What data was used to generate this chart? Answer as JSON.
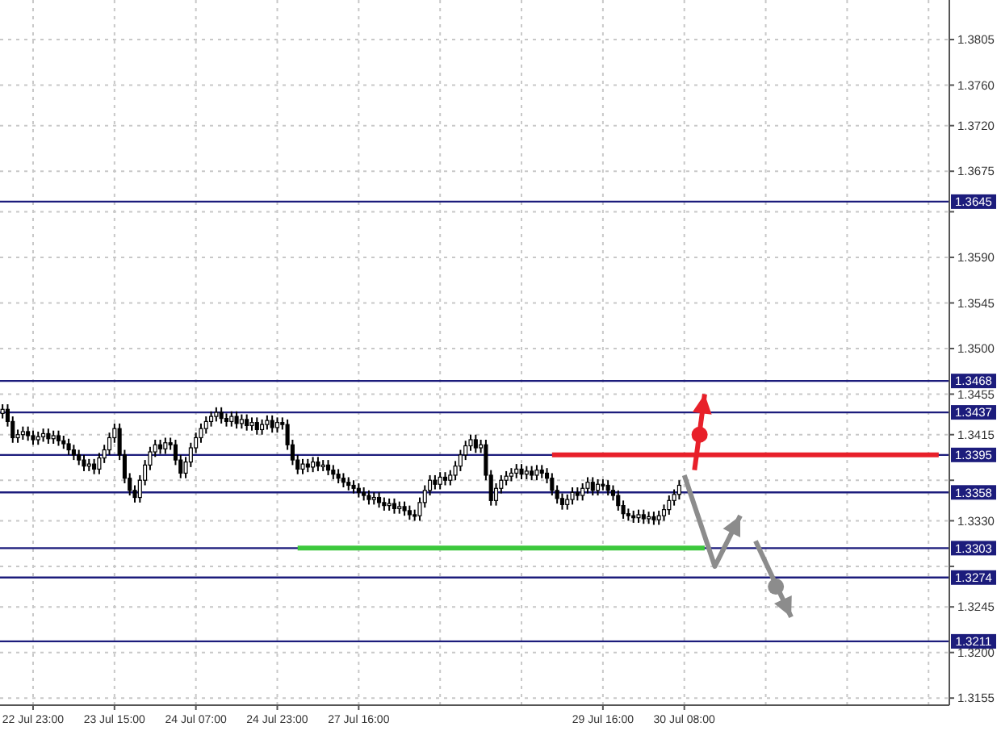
{
  "chart_data": {
    "type": "candlestick",
    "categories": [
      null,
      null,
      null,
      null,
      null,
      null,
      "22 Jul 23:00",
      null,
      null,
      null,
      null,
      null,
      null,
      null,
      null,
      null,
      null,
      null,
      null,
      null,
      null,
      null,
      "23 Jul 15:00",
      null,
      null,
      null,
      null,
      null,
      null,
      null,
      null,
      null,
      null,
      null,
      null,
      null,
      null,
      null,
      "24 Jul 07:00",
      null,
      null,
      null,
      null,
      null,
      null,
      null,
      null,
      null,
      null,
      null,
      null,
      null,
      null,
      null,
      "24 Jul 23:00",
      null,
      null,
      null,
      null,
      null,
      null,
      null,
      null,
      null,
      null,
      null,
      null,
      null,
      null,
      null,
      "27 Jul 16:00",
      null,
      null,
      null,
      null,
      null,
      null,
      null,
      null,
      null,
      null,
      null,
      null,
      null,
      null,
      null,
      null,
      null,
      null,
      null,
      null,
      null,
      null,
      null,
      null,
      null,
      null,
      null,
      null,
      null,
      null,
      null,
      null,
      null,
      null,
      null,
      null,
      null,
      null,
      null,
      null,
      null,
      null,
      null,
      null,
      null,
      null,
      null,
      "29 Jul 16:00",
      null,
      null,
      null,
      null,
      null,
      null,
      null,
      null,
      null,
      null,
      null,
      null,
      null,
      null,
      null,
      "30 Jul 08:00",
      null,
      null,
      null,
      null,
      null,
      null,
      null,
      null,
      null,
      null,
      null,
      null,
      null,
      null,
      null,
      null,
      null,
      null,
      null,
      null,
      null,
      null,
      null,
      null,
      null,
      null,
      null,
      null,
      null,
      null,
      null,
      null,
      null,
      null,
      null,
      null,
      null,
      null,
      null,
      null,
      null,
      null,
      null,
      null,
      null,
      null,
      null,
      null,
      null,
      null
    ],
    "ohlc": [
      [
        1.3436,
        1.3445,
        1.3431,
        1.344
      ],
      [
        1.344,
        1.3445,
        1.3423,
        1.3428
      ],
      [
        1.3428,
        1.3433,
        1.3407,
        1.3412
      ],
      [
        1.3412,
        1.342,
        1.3407,
        1.3415
      ],
      [
        1.3415,
        1.3423,
        1.341,
        1.3418
      ],
      [
        1.3418,
        1.3423,
        1.3409,
        1.3414
      ],
      [
        1.3414,
        1.3419,
        1.3405,
        1.341
      ],
      [
        1.341,
        1.3418,
        1.3405,
        1.3413
      ],
      [
        1.3413,
        1.3421,
        1.3408,
        1.3416
      ],
      [
        1.3416,
        1.3421,
        1.3406,
        1.3411
      ],
      [
        1.3411,
        1.3419,
        1.3406,
        1.3414
      ],
      [
        1.3414,
        1.3419,
        1.3404,
        1.3409
      ],
      [
        1.3409,
        1.3414,
        1.3401,
        1.3406
      ],
      [
        1.3406,
        1.3411,
        1.3395,
        1.34
      ],
      [
        1.34,
        1.3405,
        1.339,
        1.3395
      ],
      [
        1.3395,
        1.34,
        1.3385,
        1.339
      ],
      [
        1.339,
        1.3395,
        1.3379,
        1.3384
      ],
      [
        1.3384,
        1.3391,
        1.3379,
        1.3386
      ],
      [
        1.3386,
        1.3391,
        1.3376,
        1.3381
      ],
      [
        1.3381,
        1.3397,
        1.3376,
        1.3392
      ],
      [
        1.3392,
        1.3405,
        1.3387,
        1.34
      ],
      [
        1.34,
        1.3417,
        1.3395,
        1.3412
      ],
      [
        1.3412,
        1.3426,
        1.3407,
        1.3421
      ],
      [
        1.3421,
        1.3426,
        1.339,
        1.3395
      ],
      [
        1.3395,
        1.34,
        1.3367,
        1.3372
      ],
      [
        1.3372,
        1.3377,
        1.3355,
        1.336
      ],
      [
        1.336,
        1.3365,
        1.3348,
        1.3353
      ],
      [
        1.3353,
        1.3375,
        1.3348,
        1.337
      ],
      [
        1.337,
        1.339,
        1.3365,
        1.3385
      ],
      [
        1.3385,
        1.3403,
        1.338,
        1.3398
      ],
      [
        1.3398,
        1.341,
        1.3393,
        1.3405
      ],
      [
        1.3405,
        1.341,
        1.3396,
        1.3401
      ],
      [
        1.3401,
        1.3412,
        1.3396,
        1.3407
      ],
      [
        1.3407,
        1.3412,
        1.34,
        1.3405
      ],
      [
        1.3405,
        1.341,
        1.3385,
        1.339
      ],
      [
        1.339,
        1.3395,
        1.3372,
        1.3377
      ],
      [
        1.3377,
        1.3393,
        1.3372,
        1.3388
      ],
      [
        1.3388,
        1.3407,
        1.3383,
        1.3402
      ],
      [
        1.3402,
        1.3417,
        1.3397,
        1.3412
      ],
      [
        1.3412,
        1.3426,
        1.3407,
        1.3421
      ],
      [
        1.3421,
        1.3433,
        1.3416,
        1.3428
      ],
      [
        1.3428,
        1.3438,
        1.3423,
        1.3433
      ],
      [
        1.3433,
        1.3442,
        1.3428,
        1.3437
      ],
      [
        1.3437,
        1.3442,
        1.3426,
        1.3431
      ],
      [
        1.3431,
        1.3436,
        1.3423,
        1.3428
      ],
      [
        1.3428,
        1.3438,
        1.3423,
        1.3433
      ],
      [
        1.3433,
        1.3438,
        1.3421,
        1.3426
      ],
      [
        1.3426,
        1.3435,
        1.3421,
        1.343
      ],
      [
        1.343,
        1.3435,
        1.3419,
        1.3424
      ],
      [
        1.3424,
        1.3432,
        1.3419,
        1.3427
      ],
      [
        1.3427,
        1.3432,
        1.3415,
        1.342
      ],
      [
        1.342,
        1.343,
        1.3415,
        1.3425
      ],
      [
        1.3425,
        1.3434,
        1.342,
        1.3429
      ],
      [
        1.3429,
        1.3434,
        1.3417,
        1.3422
      ],
      [
        1.3422,
        1.3432,
        1.3417,
        1.3427
      ],
      [
        1.3427,
        1.3432,
        1.342,
        1.3425
      ],
      [
        1.3425,
        1.343,
        1.34,
        1.3405
      ],
      [
        1.3405,
        1.341,
        1.3385,
        1.339
      ],
      [
        1.339,
        1.3395,
        1.3376,
        1.3381
      ],
      [
        1.3381,
        1.3391,
        1.3376,
        1.3386
      ],
      [
        1.3386,
        1.3391,
        1.3378,
        1.3383
      ],
      [
        1.3383,
        1.3393,
        1.3378,
        1.3388
      ],
      [
        1.3388,
        1.3393,
        1.3379,
        1.3384
      ],
      [
        1.3384,
        1.339,
        1.3379,
        1.3385
      ],
      [
        1.3385,
        1.339,
        1.3375,
        1.338
      ],
      [
        1.338,
        1.3385,
        1.3371,
        1.3376
      ],
      [
        1.3376,
        1.3381,
        1.3367,
        1.3372
      ],
      [
        1.3372,
        1.3377,
        1.3363,
        1.3368
      ],
      [
        1.3368,
        1.3373,
        1.336,
        1.3365
      ],
      [
        1.3365,
        1.337,
        1.3357,
        1.3362
      ],
      [
        1.3362,
        1.3367,
        1.3353,
        1.3358
      ],
      [
        1.3358,
        1.3363,
        1.335,
        1.3355
      ],
      [
        1.3355,
        1.336,
        1.3346,
        1.3351
      ],
      [
        1.3351,
        1.3358,
        1.3346,
        1.3353
      ],
      [
        1.3353,
        1.3358,
        1.3343,
        1.3348
      ],
      [
        1.3348,
        1.3353,
        1.334,
        1.3345
      ],
      [
        1.3345,
        1.3352,
        1.334,
        1.3347
      ],
      [
        1.3347,
        1.3352,
        1.3337,
        1.3342
      ],
      [
        1.3342,
        1.3349,
        1.3337,
        1.3344
      ],
      [
        1.3344,
        1.3349,
        1.3335,
        1.334
      ],
      [
        1.334,
        1.3345,
        1.3331,
        1.3336
      ],
      [
        1.3336,
        1.3341,
        1.333,
        1.3335
      ],
      [
        1.3335,
        1.3353,
        1.333,
        1.3348
      ],
      [
        1.3348,
        1.3365,
        1.3343,
        1.336
      ],
      [
        1.336,
        1.3375,
        1.3355,
        1.337
      ],
      [
        1.337,
        1.3375,
        1.3361,
        1.3366
      ],
      [
        1.3366,
        1.3378,
        1.3361,
        1.3373
      ],
      [
        1.3373,
        1.3378,
        1.3365,
        1.337
      ],
      [
        1.337,
        1.338,
        1.3365,
        1.3375
      ],
      [
        1.3375,
        1.3389,
        1.337,
        1.3384
      ],
      [
        1.3384,
        1.34,
        1.3379,
        1.3395
      ],
      [
        1.3395,
        1.3409,
        1.339,
        1.3404
      ],
      [
        1.3404,
        1.3415,
        1.3399,
        1.341
      ],
      [
        1.341,
        1.3415,
        1.3397,
        1.3402
      ],
      [
        1.3402,
        1.341,
        1.3397,
        1.3405
      ],
      [
        1.3405,
        1.341,
        1.337,
        1.3375
      ],
      [
        1.3375,
        1.338,
        1.3345,
        1.335
      ],
      [
        1.335,
        1.3367,
        1.3345,
        1.3362
      ],
      [
        1.3362,
        1.3375,
        1.3357,
        1.337
      ],
      [
        1.337,
        1.3379,
        1.3365,
        1.3374
      ],
      [
        1.3374,
        1.3382,
        1.3369,
        1.3377
      ],
      [
        1.3377,
        1.3386,
        1.3372,
        1.3381
      ],
      [
        1.3381,
        1.3386,
        1.3371,
        1.3376
      ],
      [
        1.3376,
        1.3384,
        1.3371,
        1.3379
      ],
      [
        1.3379,
        1.3384,
        1.337,
        1.3375
      ],
      [
        1.3375,
        1.3385,
        1.337,
        1.338
      ],
      [
        1.338,
        1.3385,
        1.3372,
        1.3377
      ],
      [
        1.3377,
        1.3382,
        1.3367,
        1.3372
      ],
      [
        1.3372,
        1.3377,
        1.3355,
        1.336
      ],
      [
        1.336,
        1.3365,
        1.3347,
        1.3352
      ],
      [
        1.3352,
        1.3357,
        1.3341,
        1.3346
      ],
      [
        1.3346,
        1.3356,
        1.3341,
        1.3351
      ],
      [
        1.3351,
        1.3363,
        1.3346,
        1.3358
      ],
      [
        1.3358,
        1.3363,
        1.335,
        1.3355
      ],
      [
        1.3355,
        1.3367,
        1.335,
        1.3362
      ],
      [
        1.3362,
        1.3373,
        1.3357,
        1.3368
      ],
      [
        1.3368,
        1.3373,
        1.3355,
        1.336
      ],
      [
        1.336,
        1.3371,
        1.3355,
        1.3366
      ],
      [
        1.3366,
        1.3371,
        1.336,
        1.3365
      ],
      [
        1.3365,
        1.337,
        1.3355,
        1.336
      ],
      [
        1.336,
        1.3365,
        1.335,
        1.3355
      ],
      [
        1.3355,
        1.336,
        1.334,
        1.3345
      ],
      [
        1.3345,
        1.335,
        1.3332,
        1.3337
      ],
      [
        1.3337,
        1.3342,
        1.333,
        1.3335
      ],
      [
        1.3335,
        1.334,
        1.3328,
        1.3333
      ],
      [
        1.3333,
        1.3341,
        1.3328,
        1.3336
      ],
      [
        1.3336,
        1.3341,
        1.3327,
        1.3332
      ],
      [
        1.3332,
        1.3339,
        1.3327,
        1.3334
      ],
      [
        1.3334,
        1.3339,
        1.3326,
        1.3331
      ],
      [
        1.3331,
        1.334,
        1.3326,
        1.3335
      ],
      [
        1.3335,
        1.3346,
        1.333,
        1.3341
      ],
      [
        1.3341,
        1.3355,
        1.3336,
        1.335
      ],
      [
        1.335,
        1.3361,
        1.3345,
        1.3356
      ],
      [
        1.3356,
        1.337,
        1.3351,
        1.3365
      ],
      null,
      null,
      null,
      null,
      null,
      null,
      null,
      null,
      null,
      null,
      null,
      null,
      null,
      null,
      null,
      null,
      null,
      null,
      null,
      null,
      null,
      null,
      null,
      null,
      null,
      null,
      null,
      null,
      null,
      null,
      null,
      null,
      null,
      null,
      null,
      null,
      null,
      null,
      null,
      null,
      null,
      null,
      null,
      null,
      null,
      null,
      null,
      null,
      null,
      null,
      null
    ],
    "series": [
      {
        "type": "line",
        "color": "#e8202a",
        "values": [
          null,
          null,
          null,
          null,
          null,
          null,
          null,
          null,
          null,
          null,
          null,
          null,
          null,
          null,
          null,
          null,
          null,
          null,
          null,
          null,
          null,
          null,
          null,
          null,
          null,
          null,
          null,
          null,
          null,
          null,
          null,
          null,
          null,
          null,
          null,
          null,
          null,
          null,
          null,
          null,
          null,
          null,
          null,
          null,
          null,
          null,
          null,
          null,
          null,
          null,
          null,
          null,
          null,
          null,
          null,
          null,
          null,
          null,
          null,
          null,
          null,
          null,
          null,
          null,
          null,
          null,
          null,
          null,
          null,
          null,
          null,
          null,
          null,
          null,
          null,
          null,
          null,
          null,
          null,
          null,
          null,
          null,
          null,
          null,
          null,
          null,
          null,
          null,
          null,
          null,
          null,
          null,
          null,
          null,
          null,
          null,
          null,
          null,
          null,
          null,
          null,
          null,
          null,
          null,
          null,
          null,
          null,
          null,
          1.3395,
          1.3395,
          1.3395,
          1.3395,
          1.3395,
          1.3395,
          1.3395,
          1.3395,
          1.3395,
          1.3395,
          1.3395,
          1.3395,
          1.3395,
          1.3395,
          1.3395,
          1.3395,
          1.3395,
          1.3395,
          1.3395,
          1.3395,
          1.3395,
          1.3395,
          1.3395,
          1.3395,
          1.3395,
          1.3395,
          1.3395,
          1.3395,
          1.3395,
          1.3395,
          1.3395,
          1.3395,
          1.3395,
          1.3395,
          1.3395,
          1.3395,
          1.3395,
          1.3395,
          1.3395,
          1.3395,
          1.3395,
          1.3395,
          1.3395,
          1.3395,
          1.3395,
          1.3395,
          1.3395,
          1.3395,
          1.3395,
          1.3395,
          1.3395,
          1.3395,
          1.3395,
          1.3395,
          1.3395,
          1.3395,
          1.3395,
          1.3395,
          1.3395,
          1.3395,
          1.3395,
          1.3395,
          1.3395,
          1.3395,
          1.3395,
          1.3395,
          1.3395,
          1.3395,
          1.3395,
          1.3395,
          1.3395,
          1.3395,
          1.3395,
          1.3395,
          1.3395,
          1.3395,
          1.3395
        ]
      },
      {
        "type": "line",
        "color": "#3cc83c",
        "values": [
          null,
          null,
          null,
          null,
          null,
          null,
          null,
          null,
          null,
          null,
          null,
          null,
          null,
          null,
          null,
          null,
          null,
          null,
          null,
          null,
          null,
          null,
          null,
          null,
          null,
          null,
          null,
          null,
          null,
          null,
          null,
          null,
          null,
          null,
          null,
          null,
          null,
          null,
          null,
          null,
          null,
          null,
          null,
          null,
          null,
          null,
          null,
          null,
          null,
          null,
          null,
          null,
          null,
          null,
          null,
          null,
          null,
          null,
          1.3303,
          1.3303,
          1.3303,
          1.3303,
          1.3303,
          1.3303,
          1.3303,
          1.3303,
          1.3303,
          1.3303,
          1.3303,
          1.3303,
          1.3303,
          1.3303,
          1.3303,
          1.3303,
          1.3303,
          1.3303,
          1.3303,
          1.3303,
          1.3303,
          1.3303,
          1.3303,
          1.3303,
          1.3303,
          1.3303,
          1.3303,
          1.3303,
          1.3303,
          1.3303,
          1.3303,
          1.3303,
          1.3303,
          1.3303,
          1.3303,
          1.3303,
          1.3303,
          1.3303,
          1.3303,
          1.3303,
          1.3303,
          1.3303,
          1.3303,
          1.3303,
          1.3303,
          1.3303,
          1.3303,
          1.3303,
          1.3303,
          1.3303,
          1.3303,
          1.3303,
          1.3303,
          1.3303,
          1.3303,
          1.3303,
          1.3303,
          1.3303,
          1.3303,
          1.3303,
          1.3303,
          1.3303,
          1.3303,
          1.3303,
          1.3303,
          1.3303,
          1.3303,
          1.3303,
          1.3303,
          1.3303,
          1.3303,
          1.3303,
          1.3303,
          1.3303,
          1.3303,
          1.3303,
          1.3303,
          1.3303,
          1.3303,
          1.3303,
          1.3303,
          null,
          null,
          null,
          null,
          null,
          null,
          null,
          null,
          null,
          null,
          null,
          null,
          null,
          null,
          null,
          null,
          null,
          null,
          null,
          null,
          null,
          null,
          null,
          null,
          null,
          null,
          null,
          null,
          null,
          null,
          null,
          null,
          null,
          null,
          null,
          null,
          null,
          null,
          null,
          null,
          null,
          null,
          null,
          null,
          null,
          null
        ]
      }
    ],
    "ylim": [
      1.3148,
      1.3844
    ],
    "yticks": [
      {
        "value": 1.3155,
        "label": "1.3155"
      },
      {
        "value": 1.32,
        "label": "1.3200"
      },
      {
        "value": 1.3245,
        "label": "1.3245"
      },
      {
        "value": 1.3285,
        "label": null
      },
      {
        "value": 1.333,
        "label": "1.3330"
      },
      {
        "value": 1.337,
        "label": null
      },
      {
        "value": 1.3415,
        "label": "1.3415"
      },
      {
        "value": 1.3455,
        "label": "1.3455"
      },
      {
        "value": 1.35,
        "label": "1.3500"
      },
      {
        "value": 1.3545,
        "label": "1.3545"
      },
      {
        "value": 1.359,
        "label": "1.3590"
      },
      {
        "value": 1.3635,
        "label": null
      },
      {
        "value": 1.3675,
        "label": "1.3675"
      },
      {
        "value": 1.372,
        "label": "1.3720"
      },
      {
        "value": 1.376,
        "label": "1.3760"
      },
      {
        "value": 1.3805,
        "label": "1.3805"
      }
    ],
    "ref_lines": [
      {
        "axis": "y",
        "value": 1.3645,
        "label": "1.3645",
        "color": "#1c1c7c"
      },
      {
        "axis": "y",
        "value": 1.3468,
        "label": "1.3468",
        "color": "#1c1c7c"
      },
      {
        "axis": "y",
        "value": 1.3437,
        "label": "1.3437",
        "color": "#1c1c7c"
      },
      {
        "axis": "y",
        "value": 1.3395,
        "label": "1.3395",
        "color": "#1c1c7c"
      },
      {
        "axis": "y",
        "value": 1.3358,
        "label": "1.3358",
        "color": "#1c1c7c"
      },
      {
        "axis": "y",
        "value": 1.3303,
        "label": "1.3303",
        "color": "#1c1c7c"
      },
      {
        "axis": "y",
        "value": 1.3274,
        "label": "1.3274",
        "color": "#1c1c7c"
      },
      {
        "axis": "y",
        "value": 1.3211,
        "label": "1.3211",
        "color": "#1c1c7c"
      }
    ],
    "grid": true,
    "line_style": "solid"
  }
}
